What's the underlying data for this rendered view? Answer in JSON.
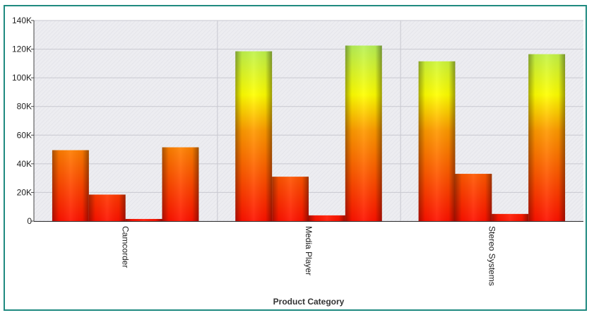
{
  "chart_data": {
    "type": "bar",
    "categories": [
      "Camcorder",
      "Media Player",
      "Stereo Systems"
    ],
    "series": [
      {
        "values": [
          49500,
          118500,
          111500
        ]
      },
      {
        "values": [
          18500,
          31000,
          33000
        ]
      },
      {
        "values": [
          1500,
          4000,
          5000
        ]
      },
      {
        "values": [
          51500,
          122500,
          116500
        ]
      }
    ],
    "xlabel": "Product Category",
    "ylabel": "",
    "ylim": [
      0,
      140000
    ],
    "yticks": [
      0,
      20000,
      40000,
      60000,
      80000,
      100000,
      120000,
      140000
    ],
    "ytick_labels": [
      "0",
      "20K",
      "40K",
      "60K",
      "80K",
      "100K",
      "120K",
      "140K"
    ],
    "grid": true,
    "colors": {
      "frame": "#1f8a80",
      "plot_bg": "#ececf0",
      "grid": "#c8c8d0",
      "bar_low": "#ff1200",
      "bar_mid": "#ffff00",
      "bar_high": "#b0f060"
    }
  }
}
